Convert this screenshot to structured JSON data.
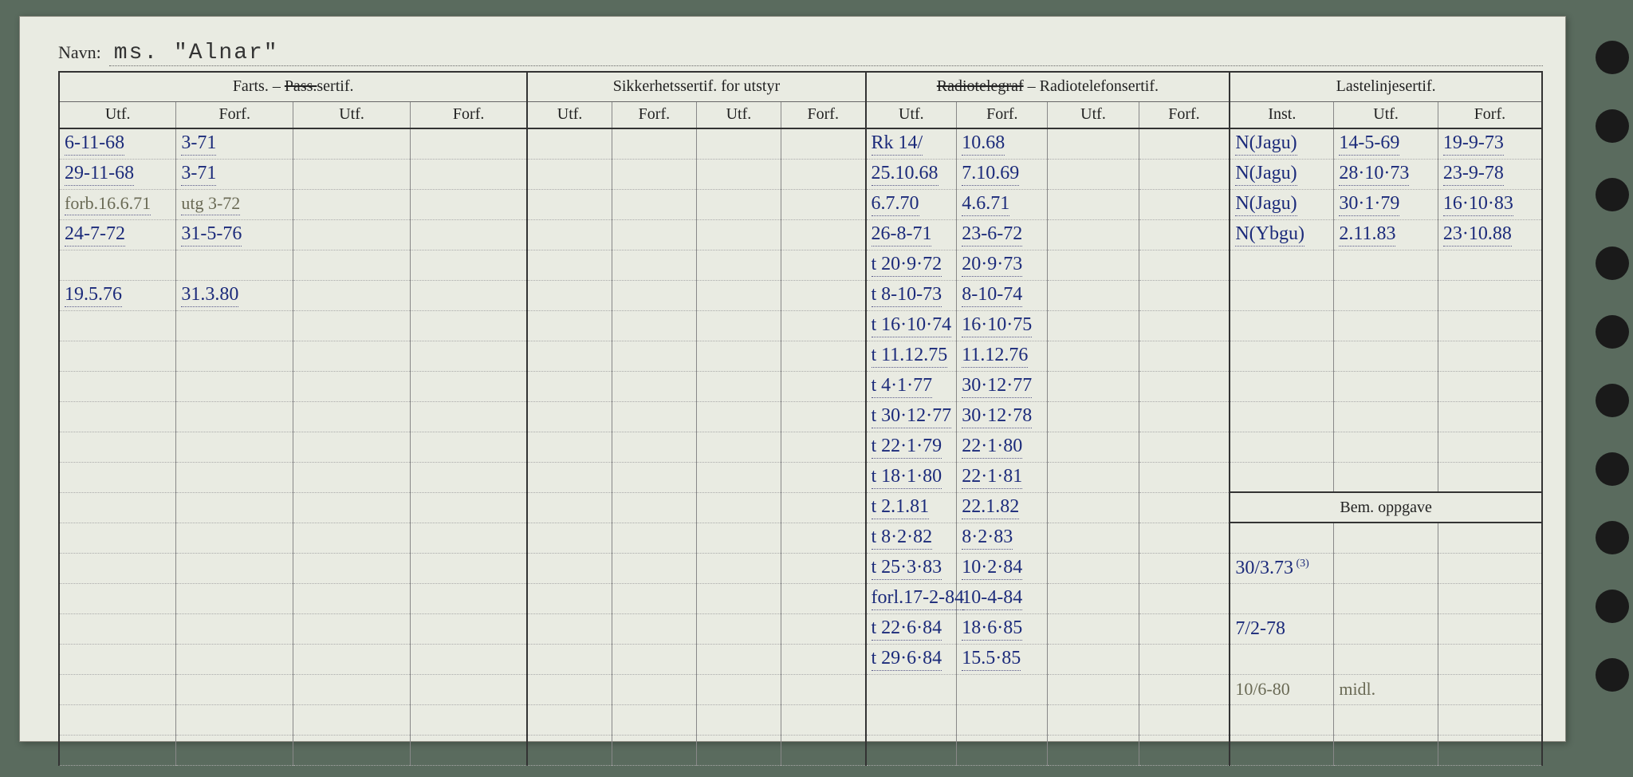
{
  "navn_label": "Navn:",
  "navn_value": "ms. \"Alnar\"",
  "headers": {
    "farts": "Farts. –",
    "farts_strike": "Pass.",
    "farts_suffix": "sertif.",
    "sikker": "Sikkerhetssertif. for utstyr",
    "radio_strike": "Radiotelegraf",
    "radio_dash": " – ",
    "radio_rest": "Radiotelefonsertif.",
    "laste": "Lastelinjesertif.",
    "utf": "Utf.",
    "forf": "Forf.",
    "inst": "Inst.",
    "bem": "Bem. oppgave"
  },
  "colors": {
    "paper": "#e9ebe2",
    "ink_blue": "#1b2a7a",
    "ink_grey": "#6a6a55",
    "rule": "#333333",
    "light_rule": "#888888"
  },
  "rows": [
    {
      "f_utf": "6-11-68",
      "f_forf": "3-71",
      "r_utf": "Rk 14/",
      "r_forf": "10.68",
      "l_inst": "N(Jagu)",
      "l_utf": "14-5-69",
      "l_forf": "19-9-73"
    },
    {
      "f_utf": "29-11-68",
      "f_forf": "3-71",
      "r_utf": "25.10.68",
      "r_forf": "7.10.69",
      "l_inst": "N(Jagu)",
      "l_utf": "28·10·73",
      "l_forf": "23-9-78"
    },
    {
      "f_utf": "forb.16.6.71",
      "f_utf_grey": true,
      "f_forf": "utg 3-72",
      "f_forf_grey": true,
      "r_utf": "6.7.70",
      "r_forf": "4.6.71",
      "l_inst": "N(Jagu)",
      "l_utf": "30·1·79",
      "l_forf": "16·10·83"
    },
    {
      "f_utf": "24-7-72",
      "f_forf": "31-5-76",
      "r_utf": "26-8-71",
      "r_forf": "23-6-72",
      "l_inst": "N(Ybgu)",
      "l_utf": "2.11.83",
      "l_forf": "23·10.88"
    },
    {
      "f_utf": "",
      "f_forf": "",
      "r_utf": "t 20·9·72",
      "r_forf": "20·9·73"
    },
    {
      "f_utf": "19.5.76",
      "f_forf": "31.3.80",
      "r_utf": "t 8-10-73",
      "r_forf": "8-10-74"
    },
    {
      "r_utf": "t 16·10·74",
      "r_forf": "16·10·75"
    },
    {
      "r_utf": "t 11.12.75",
      "r_forf": "11.12.76"
    },
    {
      "r_utf": "t 4·1·77",
      "r_forf": "30·12·77"
    },
    {
      "r_utf": "t 30·12·77",
      "r_forf": "30·12·78"
    },
    {
      "r_utf": "t 22·1·79",
      "r_forf": "22·1·80"
    },
    {
      "r_utf": "t 18·1·80",
      "r_forf": "22·1·81"
    },
    {
      "r_utf": "t 2.1.81",
      "r_forf": "22.1.82",
      "bem_divider": true
    },
    {
      "r_utf": "t 8·2·82",
      "r_forf": "8·2·83"
    },
    {
      "r_utf": "t 25·3·83",
      "r_forf": "10·2·84",
      "b1": "30/3.73",
      "b1_sup": "(3)"
    },
    {
      "r_utf": "forl.17-2-84",
      "r_forf": "10-4-84"
    },
    {
      "r_utf": "t 22·6·84",
      "r_forf": "18·6·85",
      "b1": "7/2-78"
    },
    {
      "r_utf": "t 29·6·84",
      "r_forf": "15.5·85"
    },
    {
      "b1": "10/6-80",
      "b2": "midl.",
      "grey": true
    },
    {},
    {}
  ]
}
